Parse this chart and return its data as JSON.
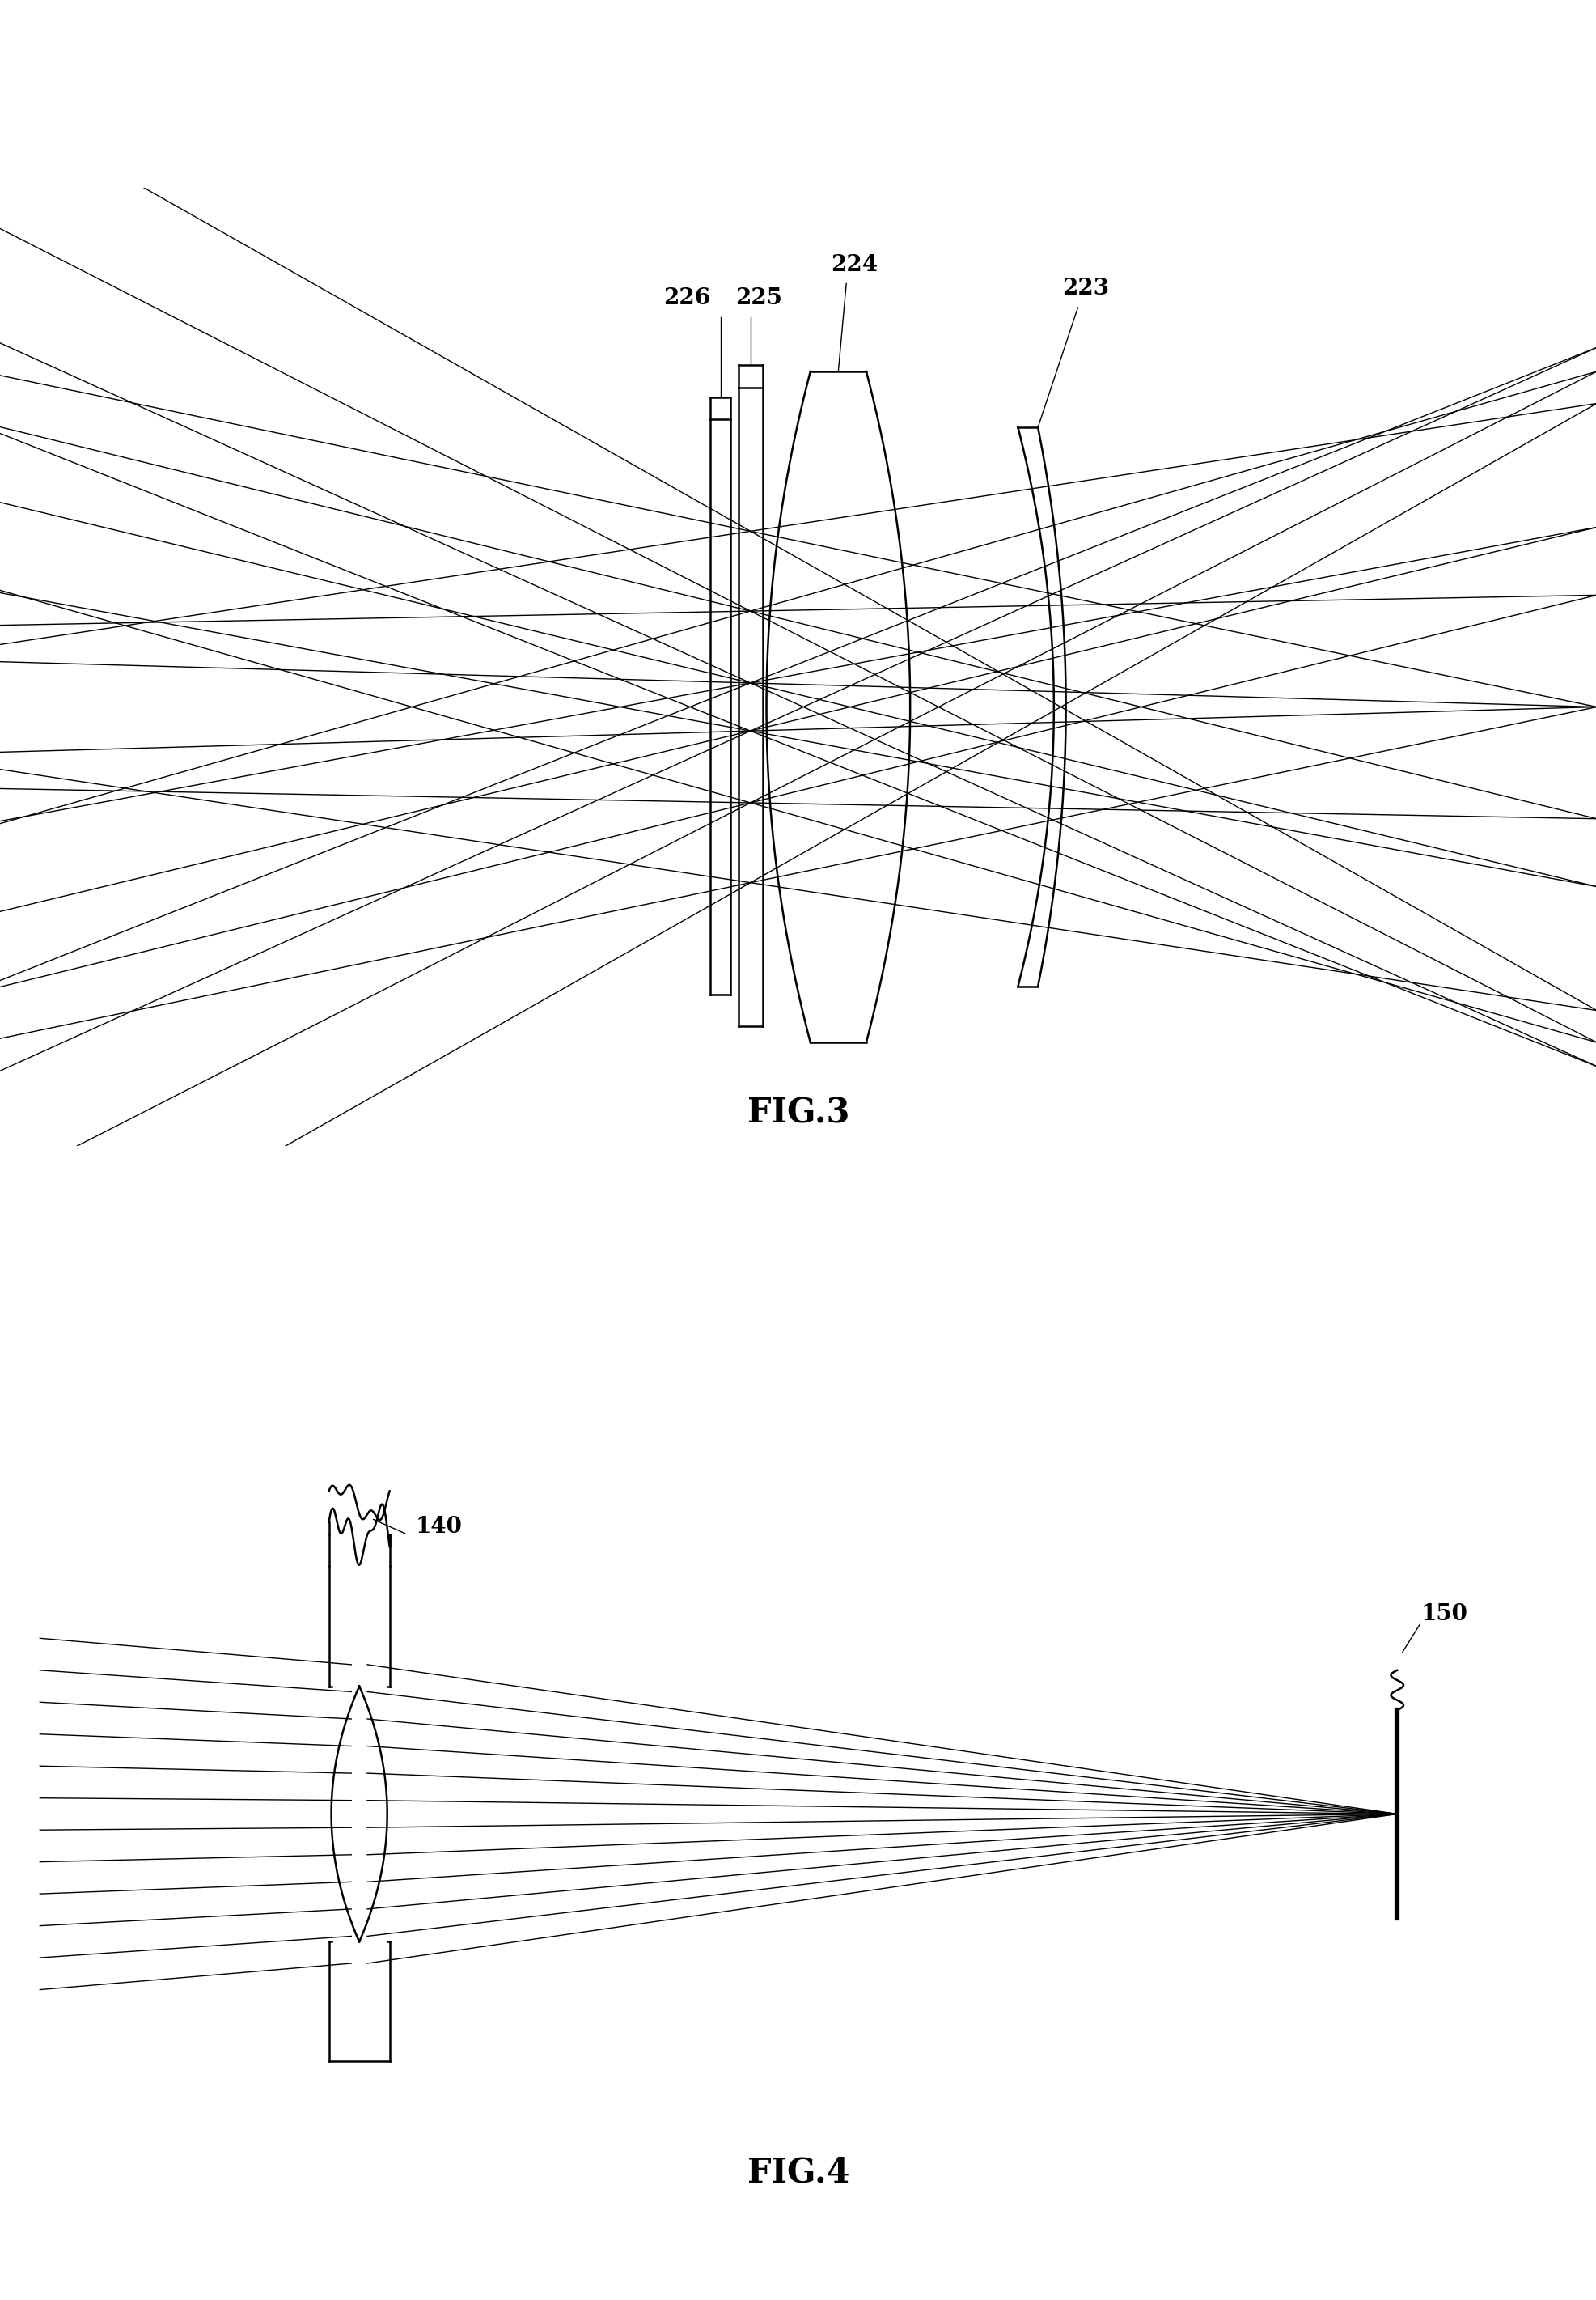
{
  "fig_width": 19.74,
  "fig_height": 28.42,
  "bg_color": "#ffffff",
  "line_color": "#000000",
  "line_width": 1.8,
  "fig3_label": "FIG.3",
  "fig4_label": "FIG.4",
  "label_223": "223",
  "label_224": "224",
  "label_225": "225",
  "label_226": "226",
  "label_140": "140",
  "label_150": "150",
  "font_size_labels": 20,
  "font_size_fig": 30
}
